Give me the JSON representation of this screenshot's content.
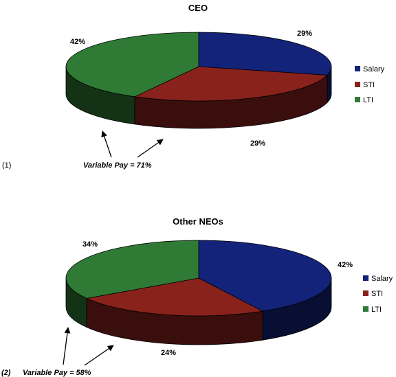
{
  "chart_data": [
    {
      "type": "pie",
      "title": "CEO",
      "categories": [
        "Salary",
        "STI",
        "LTI"
      ],
      "values": [
        29,
        29,
        42
      ],
      "data_labels": [
        "29%",
        "29%",
        "42%"
      ],
      "colors": [
        "#13237a",
        "#8a221c",
        "#2f7a34"
      ],
      "legend": {
        "placement": "right",
        "entries": [
          "Salary",
          "STI",
          "LTI"
        ]
      },
      "footnote_marker": "(1)",
      "annotation": "Variable Pay = 71%"
    },
    {
      "type": "pie",
      "title": "Other NEOs",
      "categories": [
        "Salary",
        "STI",
        "LTI"
      ],
      "values": [
        42,
        24,
        34
      ],
      "data_labels": [
        "42%",
        "24%",
        "34%"
      ],
      "colors": [
        "#13237a",
        "#8a221c",
        "#2f7a34"
      ],
      "legend": {
        "placement": "right",
        "entries": [
          "Salary",
          "STI",
          "LTI"
        ]
      },
      "footnote_marker": "(2)",
      "annotation": "Variable Pay = 58%"
    }
  ]
}
